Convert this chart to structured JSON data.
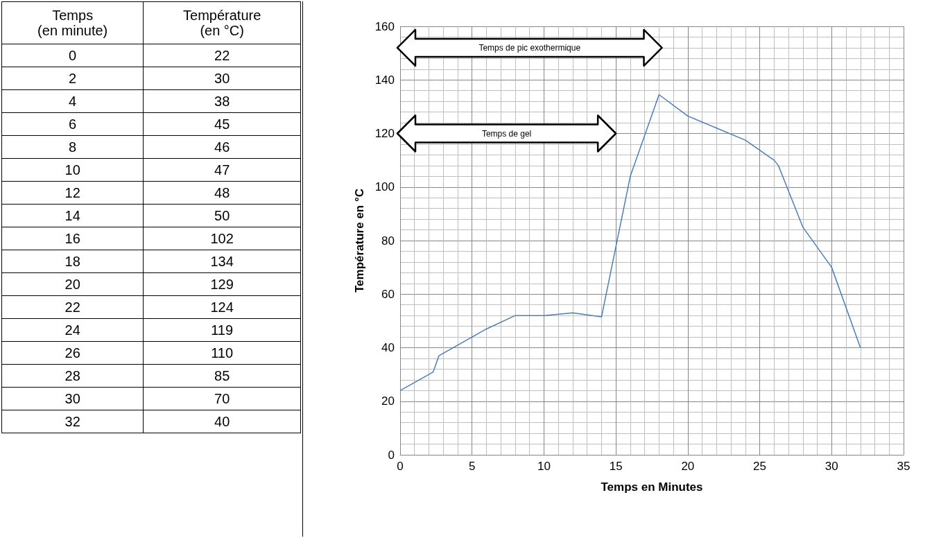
{
  "chart_data": [
    {
      "type": "heatmap",
      "ylabel": "Temps (en minute)",
      "categories": [
        "Température (en °C)"
      ],
      "data_labels": true,
      "y_categories": [
        "0",
        "2",
        "4",
        "6",
        "8",
        "10",
        "12",
        "14",
        "16",
        "18",
        "20",
        "22",
        "24",
        "26",
        "28",
        "30",
        "32"
      ],
      "cells": [
        [
          22
        ],
        [
          30
        ],
        [
          38
        ],
        [
          45
        ],
        [
          46
        ],
        [
          47
        ],
        [
          48
        ],
        [
          50
        ],
        [
          102
        ],
        [
          134
        ],
        [
          129
        ],
        [
          124
        ],
        [
          119
        ],
        [
          110
        ],
        [
          85
        ],
        [
          70
        ],
        [
          40
        ]
      ]
    },
    {
      "type": "line",
      "xlabel": "Temps en Minutes",
      "ylabel": "Température en °C",
      "x": [
        0,
        2,
        2.3,
        2.7,
        6,
        8,
        10,
        12,
        14,
        16,
        18,
        20,
        22,
        24,
        26,
        26.3,
        28,
        30,
        32
      ],
      "values": [
        24,
        30,
        31,
        37,
        47,
        52,
        52,
        53,
        51.5,
        104,
        134.5,
        126.5,
        122,
        117.5,
        110,
        108,
        85,
        70,
        40
      ],
      "color": "#4a7ebb",
      "marker": "none",
      "line_style": "solid",
      "grid": true,
      "xlim": [
        0,
        35
      ],
      "xticks": [
        0,
        5,
        10,
        15,
        20,
        25,
        30,
        35
      ],
      "ylim": [
        0,
        160
      ],
      "yticks": [
        0,
        20,
        40,
        60,
        80,
        100,
        120,
        140,
        160
      ],
      "annotations": [
        "Temps de pic exothermique",
        "Temps de gel"
      ]
    }
  ]
}
